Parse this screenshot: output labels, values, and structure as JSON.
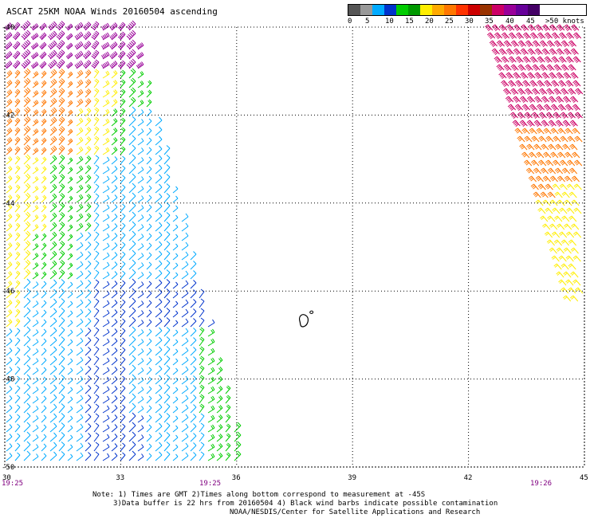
{
  "title": "ASCAT 25KM NOAA Winds 20160504 ascending",
  "legend": {
    "colors": [
      "#555555",
      "#999999",
      "#00aaff",
      "#0033cc",
      "#00cc00",
      "#009900",
      "#ffee00",
      "#ffaa00",
      "#ff7700",
      "#ff3300",
      "#cc0000",
      "#993300",
      "#cc0066",
      "#990099",
      "#660099",
      "#440066"
    ],
    "labels": [
      "0",
      "5",
      "10",
      "15",
      "20",
      "25",
      "30",
      "35",
      "40",
      "45",
      ">50 knots"
    ]
  },
  "axes": {
    "lon_labels": [
      "30",
      "33",
      "36",
      "39",
      "42",
      "45"
    ],
    "lat_labels": [
      "-40",
      "-42",
      "-44",
      "-46",
      "-48",
      "-50"
    ],
    "times": [
      "19:25",
      "19:25",
      "19:26"
    ]
  },
  "notes": {
    "line1": "Note: 1) Times are GMT 2)Times along bottom correspond to measurement at -45S",
    "line2": "3)Data buffer is 22 hrs from 20160504 4) Black wind barbs indicate possible contamination",
    "line3": "NOAA/NESDIS/Center for Satellite Applications and Research"
  },
  "chart_data": {
    "type": "wind-barb map",
    "xlim": [
      30,
      45
    ],
    "ylim": [
      -50,
      -40
    ],
    "units": "knots",
    "swaths": [
      {
        "name": "west",
        "east_edge_top_lon": 33.3,
        "east_edge_bottom_lon": 36.2
      },
      {
        "name": "east",
        "west_edge_top_lon": 42.6,
        "west_edge_bottom_lon": 44.7
      }
    ]
  }
}
